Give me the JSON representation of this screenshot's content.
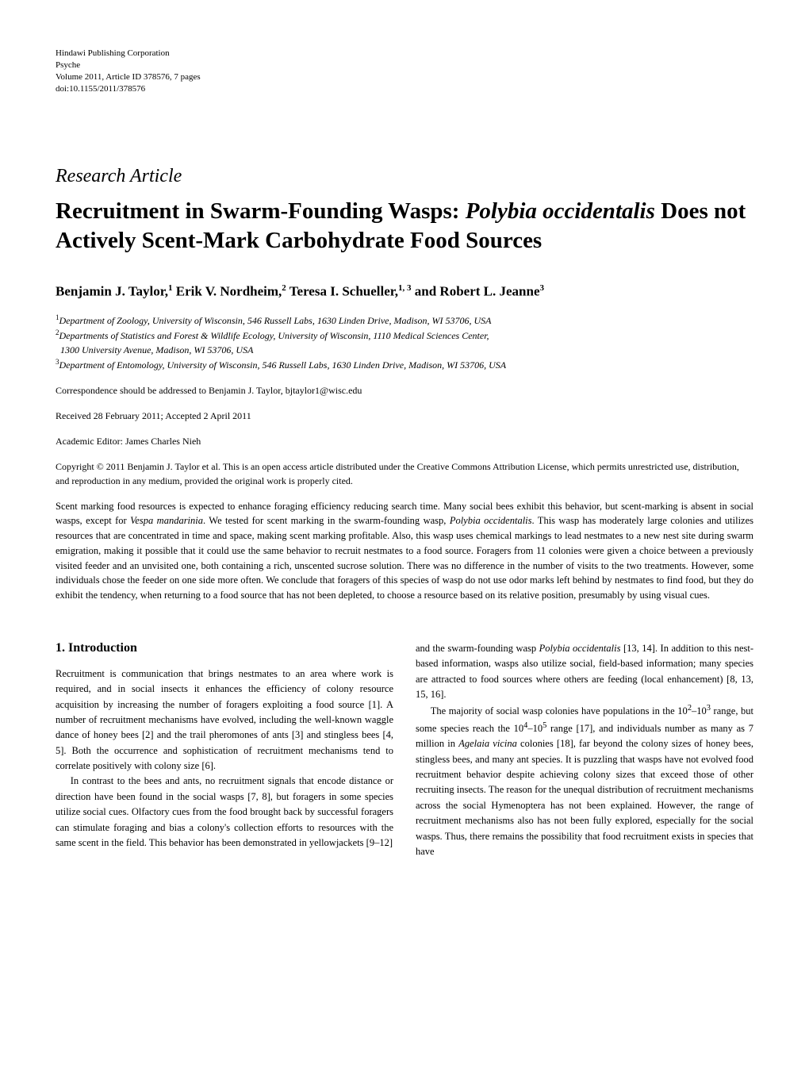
{
  "header": {
    "publisher": "Hindawi Publishing Corporation",
    "journal": "Psyche",
    "volume_line": "Volume 2011, Article ID 378576, 7 pages",
    "doi": "doi:10.1155/2011/378576"
  },
  "article_type": "Research Article",
  "title_pre_italic": "Recruitment in Swarm-Founding Wasps: ",
  "title_italic": "Polybia occidentalis",
  "title_post_italic": " Does not Actively Scent-Mark Carbohydrate Food Sources",
  "authors_html": "Benjamin J. Taylor,<sup>1</sup> Erik V. Nordheim,<sup>2</sup> Teresa I. Schueller,<sup>1, 3</sup> and Robert L. Jeanne<sup>3</sup>",
  "affiliations": {
    "a1": "Department of Zoology, University of Wisconsin, 546 Russell Labs, 1630 Linden Drive, Madison, WI 53706, USA",
    "a2_line1": "Departments of Statistics and Forest & Wildlife Ecology, University of Wisconsin, 1110 Medical Sciences Center,",
    "a2_line2": "1300 University Avenue, Madison, WI 53706, USA",
    "a3": "Department of Entomology, University of Wisconsin, 546 Russell Labs, 1630 Linden Drive, Madison, WI 53706, USA"
  },
  "correspondence": "Correspondence should be addressed to Benjamin J. Taylor, bjtaylor1@wisc.edu",
  "received": "Received 28 February 2011; Accepted 2 April 2011",
  "editor": "Academic Editor: James Charles Nieh",
  "copyright": "Copyright © 2011 Benjamin J. Taylor et al. This is an open access article distributed under the Creative Commons Attribution License, which permits unrestricted use, distribution, and reproduction in any medium, provided the original work is properly cited.",
  "abstract_parts": {
    "p1": "Scent marking food resources is expected to enhance foraging efficiency reducing search time. Many social bees exhibit this behavior, but scent-marking is absent in social wasps, except for ",
    "i1": "Vespa mandarinia",
    "p2": ". We tested for scent marking in the swarm-founding wasp, ",
    "i2": "Polybia occidentalis",
    "p3": ". This wasp has moderately large colonies and utilizes resources that are concentrated in time and space, making scent marking profitable. Also, this wasp uses chemical markings to lead nestmates to a new nest site during swarm emigration, making it possible that it could use the same behavior to recruit nestmates to a food source. Foragers from 11 colonies were given a choice between a previously visited feeder and an unvisited one, both containing a rich, unscented sucrose solution. There was no difference in the number of visits to the two treatments. However, some individuals chose the feeder on one side more often. We conclude that foragers of this species of wasp do not use odor marks left behind by nestmates to find food, but they do exhibit the tendency, when returning to a food source that has not been depleted, to choose a resource based on its relative position, presumably by using visual cues."
  },
  "section_title": "1. Introduction",
  "left_col": {
    "p1": "Recruitment is communication that brings nestmates to an area where work is required, and in social insects it enhances the efficiency of colony resource acquisition by increasing the number of foragers exploiting a food source [1]. A number of recruitment mechanisms have evolved, including the well-known waggle dance of honey bees [2] and the trail pheromones of ants [3] and stingless bees [4, 5]. Both the occurrence and sophistication of recruitment mechanisms tend to correlate positively with colony size [6].",
    "p2": "In contrast to the bees and ants, no recruitment signals that encode distance or direction have been found in the social wasps [7, 8], but foragers in some species utilize social cues. Olfactory cues from the food brought back by successful foragers can stimulate foraging and bias a colony's collection efforts to resources with the same scent in the field. This behavior has been demonstrated in yellowjackets [9–12]"
  },
  "right_col": {
    "p1_pre": "and the swarm-founding wasp ",
    "p1_italic": "Polybia occidentalis",
    "p1_post": " [13, 14]. In addition to this nest-based information, wasps also utilize social, field-based information; many species are attracted to food sources where others are feeding (local enhancement) [8, 13, 15, 16].",
    "p2_pre": "The majority of social wasp colonies have populations in the 10",
    "p2_sup1": "2",
    "p2_mid1": "–10",
    "p2_sup2": "3",
    "p2_mid2": " range, but some species reach the 10",
    "p2_sup3": "4",
    "p2_mid3": "–10",
    "p2_sup4": "5",
    "p2_mid4": " range [17], and individuals number as many as 7 million in ",
    "p2_italic": "Agelaia vicina",
    "p2_post": " colonies [18], far beyond the colony sizes of honey bees, stingless bees, and many ant species. It is puzzling that wasps have not evolved food recruitment behavior despite achieving colony sizes that exceed those of other recruiting insects. The reason for the unequal distribution of recruitment mechanisms across the social Hymenoptera has not been explained. However, the range of recruitment mechanisms also has not been fully explored, especially for the social wasps. Thus, there remains the possibility that food recruitment exists in species that have"
  }
}
